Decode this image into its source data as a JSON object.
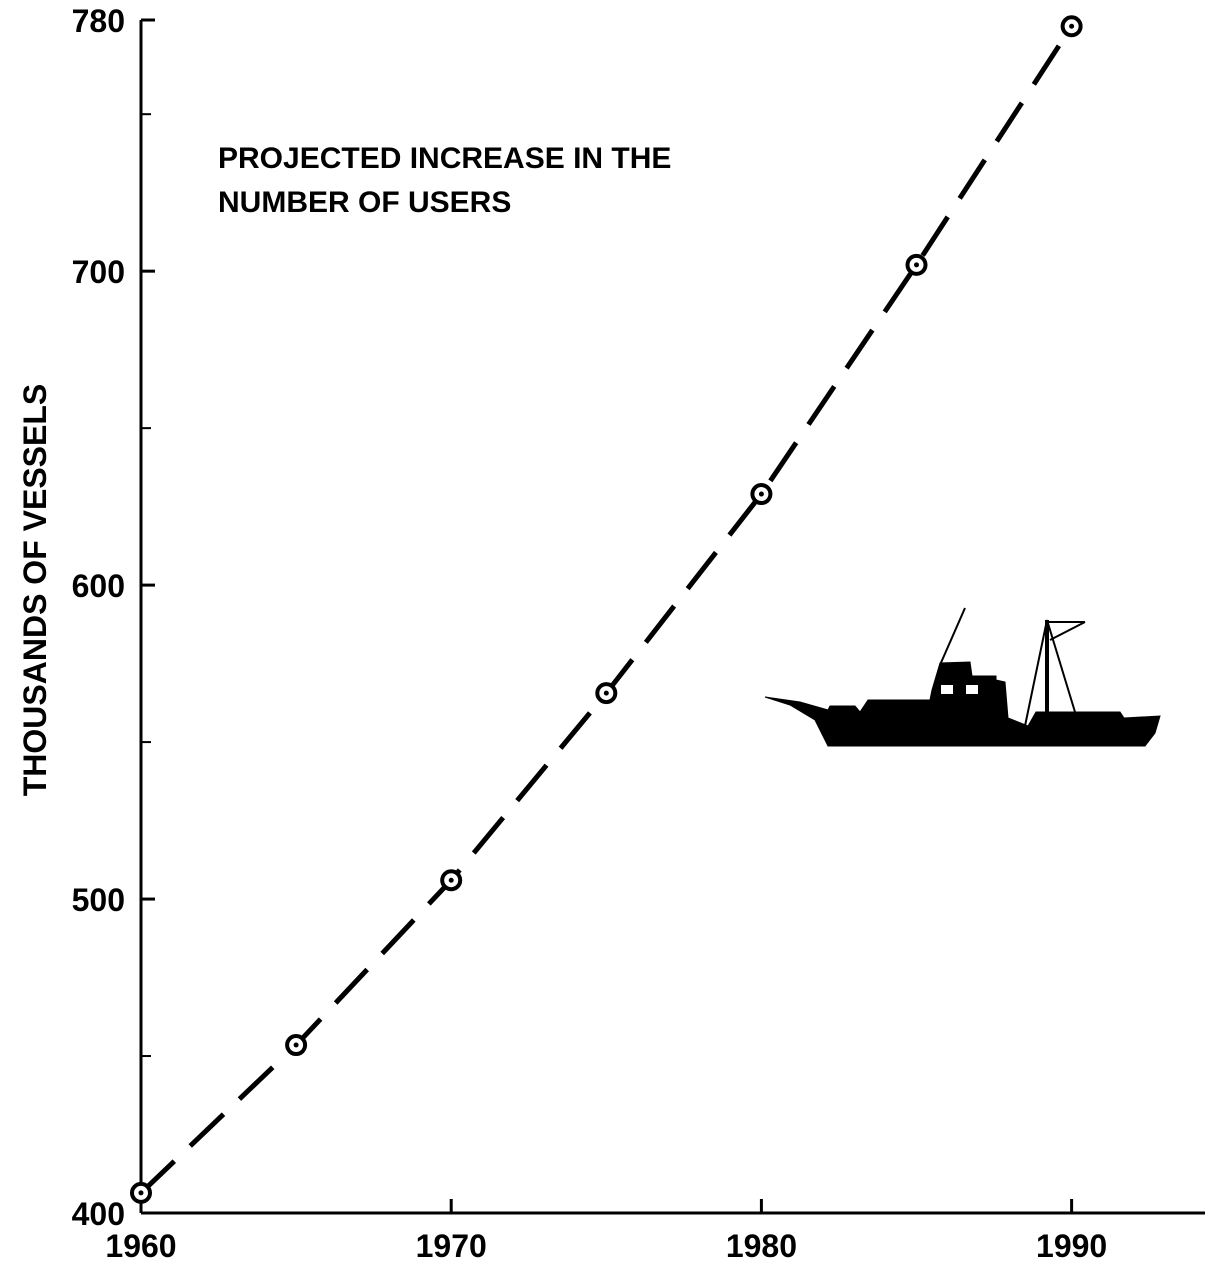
{
  "chart_data": {
    "type": "line",
    "annotation": [
      "PROJECTED INCREASE IN THE",
      "NUMBER OF USERS"
    ],
    "y_label": "THOUSANDS OF VESSELS",
    "x": [
      1960,
      1965,
      1970,
      1975,
      1980,
      1985,
      1990
    ],
    "series": [
      {
        "name": "Vessels",
        "color": "#000000",
        "values": [
          406.4,
          453.5,
          506,
          565.6,
          629,
          702,
          778
        ]
      }
    ],
    "xlim": [
      1960,
      1994.3
    ],
    "xticks": [
      1960,
      1970,
      1980,
      1990
    ],
    "ylim": [
      400,
      780
    ],
    "yticks": [
      400,
      500,
      600,
      700,
      780
    ],
    "yminorticks": [
      450,
      550,
      650,
      750
    ],
    "dashed": true,
    "grid": false
  }
}
